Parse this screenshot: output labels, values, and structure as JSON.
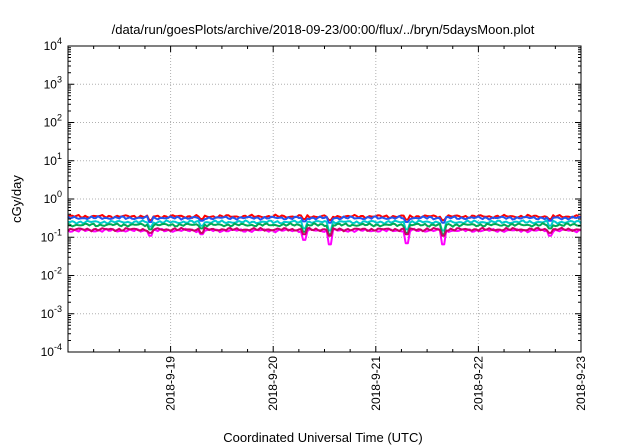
{
  "chart_data": {
    "type": "line",
    "title": "/data/run/goesPlots/archive/2018-09-23/00:00/flux/../bryn/5daysMoon.plot",
    "xlabel": "Coordinated Universal Time (UTC)",
    "ylabel": "cGy/day",
    "yscale": "log",
    "ylim": [
      0.0001,
      10000
    ],
    "xlim": [
      "2018-09-18",
      "2018-09-23"
    ],
    "grid": true,
    "yticks": [
      {
        "base": "10",
        "exp": "-4"
      },
      {
        "base": "10",
        "exp": "-3"
      },
      {
        "base": "10",
        "exp": "-2"
      },
      {
        "base": "10",
        "exp": "-1"
      },
      {
        "base": "10",
        "exp": "0"
      },
      {
        "base": "10",
        "exp": "1"
      },
      {
        "base": "10",
        "exp": "2"
      },
      {
        "base": "10",
        "exp": "3"
      },
      {
        "base": "10",
        "exp": "4"
      }
    ],
    "xticks": [
      "2018-9-19",
      "2018-9-20",
      "2018-9-21",
      "2018-9-22",
      "2018-9-23"
    ],
    "x_days": [
      1,
      2,
      3,
      4,
      5
    ],
    "series": [
      {
        "color": "#ff0000",
        "base": 0.35,
        "dips": [
          [
            0.8,
            0.28
          ],
          [
            1.3,
            0.3
          ],
          [
            2.3,
            0.3
          ],
          [
            2.55,
            0.28
          ],
          [
            3.3,
            0.29
          ],
          [
            3.65,
            0.28
          ],
          [
            4.7,
            0.3
          ]
        ]
      },
      {
        "color": "#2255ee",
        "base": 0.32,
        "dips": [
          [
            0.8,
            0.25
          ],
          [
            1.3,
            0.27
          ],
          [
            2.3,
            0.26
          ],
          [
            2.55,
            0.24
          ],
          [
            3.3,
            0.25
          ],
          [
            3.65,
            0.24
          ],
          [
            4.7,
            0.27
          ]
        ]
      },
      {
        "color": "#00cccc",
        "base": 0.25,
        "dips": [
          [
            0.8,
            0.19
          ],
          [
            1.3,
            0.2
          ],
          [
            2.3,
            0.17
          ],
          [
            2.55,
            0.15
          ],
          [
            3.3,
            0.16
          ],
          [
            3.65,
            0.15
          ],
          [
            4.7,
            0.2
          ]
        ]
      },
      {
        "color": "#00aa55",
        "base": 0.21,
        "dips": [
          [
            0.8,
            0.16
          ],
          [
            1.3,
            0.17
          ],
          [
            2.3,
            0.14
          ],
          [
            2.55,
            0.12
          ],
          [
            3.3,
            0.13
          ],
          [
            3.65,
            0.12
          ],
          [
            4.7,
            0.17
          ]
        ]
      },
      {
        "color": "#ff00ff",
        "base": 0.15,
        "dips": [
          [
            0.8,
            0.11
          ],
          [
            1.3,
            0.12
          ],
          [
            2.3,
            0.085
          ],
          [
            2.55,
            0.065
          ],
          [
            3.3,
            0.07
          ],
          [
            3.65,
            0.065
          ],
          [
            4.7,
            0.11
          ]
        ]
      },
      {
        "color": "#cc0066",
        "base": 0.16,
        "dips": [
          [
            0.8,
            0.13
          ],
          [
            1.3,
            0.13
          ],
          [
            2.3,
            0.12
          ],
          [
            2.55,
            0.11
          ],
          [
            3.3,
            0.12
          ],
          [
            3.65,
            0.11
          ],
          [
            4.7,
            0.13
          ]
        ]
      }
    ]
  }
}
